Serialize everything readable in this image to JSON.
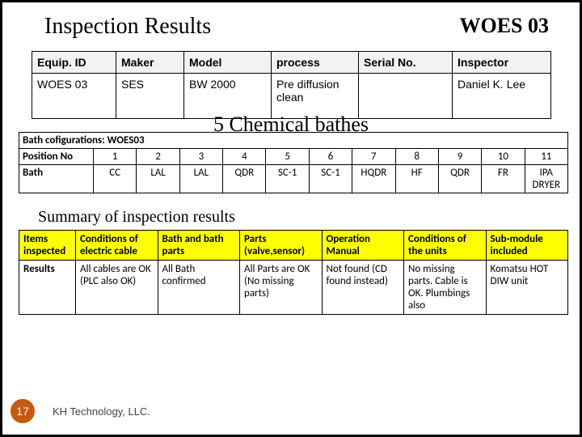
{
  "header": {
    "title": "Inspection Results",
    "code": "WOES 03"
  },
  "equip": {
    "headers": [
      "Equip. ID",
      "Maker",
      "Model",
      "process",
      "Serial No.",
      "Inspector"
    ],
    "row": {
      "id": "WOES 03",
      "maker": "SES",
      "model": "BW 2000",
      "process": "Pre diffusion clean",
      "serial": "",
      "inspector": "Daniel K. Lee"
    }
  },
  "mid_label": "5 Chemical bathes",
  "bath": {
    "config_label": "Bath cofigurations: WOES03",
    "pos_label": "Position No",
    "bath_label": "Bath",
    "positions": [
      "1",
      "2",
      "3",
      "4",
      "5",
      "6",
      "7",
      "8",
      "9",
      "10",
      "11"
    ],
    "baths": [
      "CC",
      "LAL",
      "LAL",
      "QDR",
      "SC-1",
      "SC-1",
      "HQDR",
      "HF",
      "QDR",
      "FR",
      "IPA DRYER"
    ]
  },
  "summary_title": "Summary of inspection results",
  "summ": {
    "head_label": "Items inspected",
    "headers": [
      "Conditions of electric cable",
      "Bath and bath parts",
      "Parts (valve,sensor)",
      "Operation Manual",
      "Conditions of the units",
      "Sub-module included"
    ],
    "row_label": "Results",
    "results": [
      "All cables are OK (PLC also OK)",
      "All Bath confirmed",
      "All Parts are OK (No missing parts)",
      "Not found (CD found instead)",
      "No missing parts. Cable is OK. Plumbings also",
      "Komatsu HOT DIW unit"
    ]
  },
  "footer": {
    "page": "17",
    "company": "KH Technology, LLC."
  },
  "colors": {
    "highlight": "#ffff00",
    "page_badge": "#c55a11"
  }
}
